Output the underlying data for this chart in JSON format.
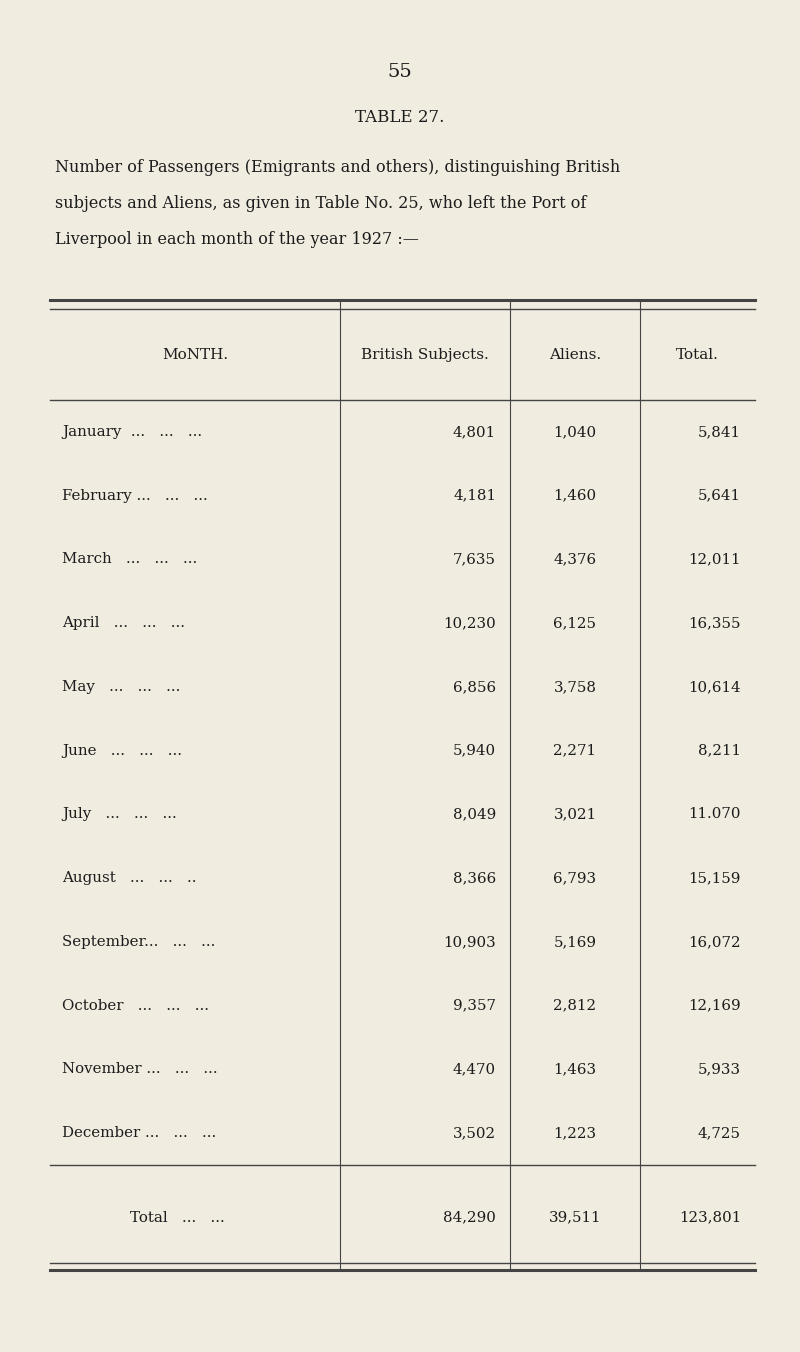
{
  "page_number": "55",
  "table_title": "TABLE 27.",
  "description_lines": [
    "Number of Passengers (Emigrants and others), distinguishing British",
    "subjects and Aliens, as given in Table No. 25, who left the Port of",
    "Liverpool in each month of the year 1927 :—"
  ],
  "col_headers_0": "Month.",
  "col_headers_1": "British Subjects.",
  "col_headers_2": "Aliens.",
  "col_headers_3": "Total.",
  "months": [
    "January  ...   ...   ...",
    "February ...   ...   ...",
    "March   ...   ...   ...",
    "April   ...   ...   ...",
    "May   ...   ...   ...",
    "June   ...   ...   ...",
    "July   ...   ...   ...",
    "August   ...   ...   ..",
    "September...   ...   ...",
    "October   ...   ...   ...",
    "November ...   ...   ...",
    "December ...   ...   ..."
  ],
  "british": [
    "4,801",
    "4,181",
    "7,635",
    "10,230",
    "6,856",
    "5,940",
    "8,049",
    "8,366",
    "10,903",
    "9,357",
    "4,470",
    "3,502"
  ],
  "aliens": [
    "1,040",
    "1,460",
    "4,376",
    "6,125",
    "3,758",
    "2,271",
    "3,021",
    "6,793",
    "5,169",
    "2,812",
    "1,463",
    "1,223"
  ],
  "totals": [
    "5,841",
    "5,641",
    "12,011",
    "16,355",
    "10,614",
    "8,211",
    "11.070",
    "15,159",
    "16,072",
    "12,169",
    "5,933",
    "4,725"
  ],
  "total_label": "Total   ...   ...",
  "total_british": "84,290",
  "total_aliens": "39,511",
  "total_total": "123,801",
  "bg_color": "#f0ece0",
  "line_color": "#444444",
  "text_color": "#1c1c1c"
}
